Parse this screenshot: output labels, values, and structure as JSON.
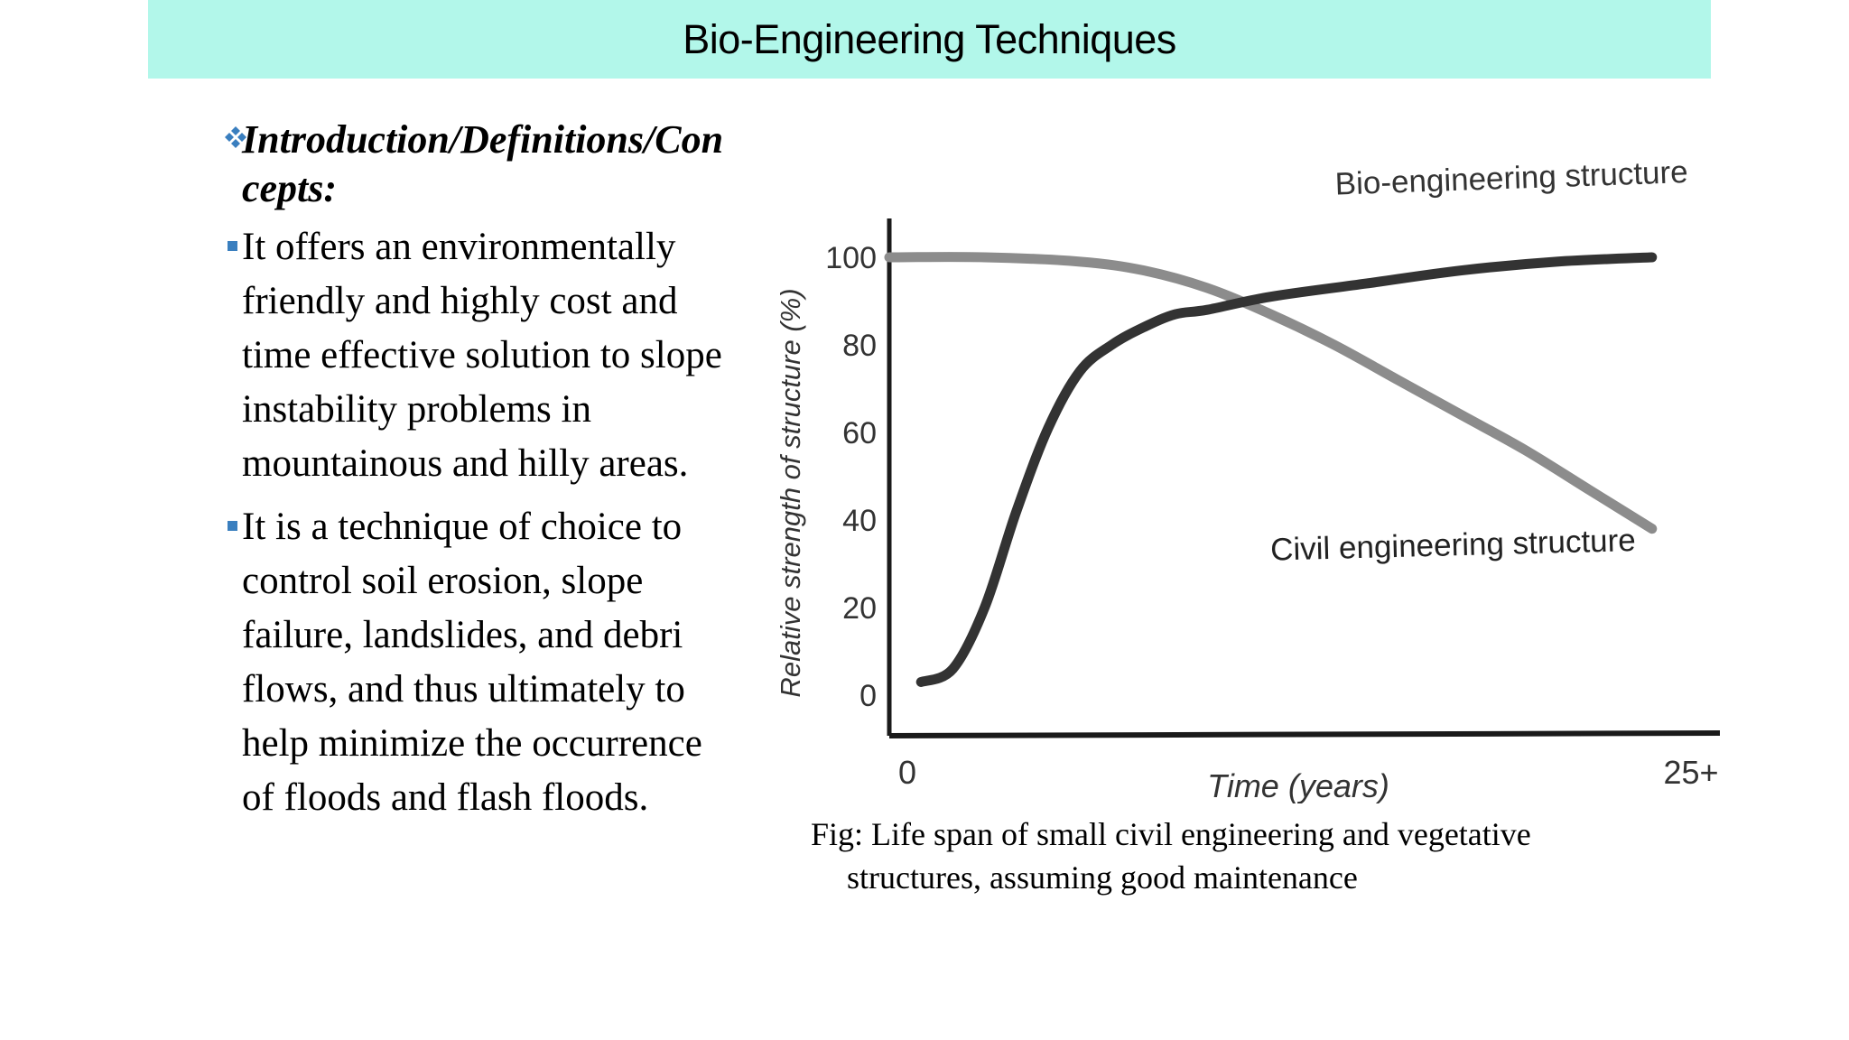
{
  "slide": {
    "title": "Bio-Engineering Techniques",
    "heading": "Introduction/Definitions/Concepts:",
    "bullets": [
      "It offers an environmentally friendly and highly cost and time effective solution to slope instability problems in mountainous and hilly areas.",
      "It is a technique of choice to control soil erosion, slope failure, landslides, and debri flows, and thus ultimately to help minimize the occurrence of floods and flash floods."
    ],
    "caption_line1": "Fig: Life span of small civil engineering and vegetative",
    "caption_line2": "structures, assuming good maintenance"
  },
  "colors": {
    "title_bar": "#b2f7ea",
    "bullet": "#3a7fbf",
    "bio_curve": "#333333",
    "civil_curve": "#8c8c8c",
    "axis": "#1a1a1a"
  },
  "chart_data": {
    "type": "line",
    "ylabel": "Relative strength of structure (%)",
    "xlabel": "Time (years)",
    "ylim": [
      0,
      100
    ],
    "yticks": [
      "0",
      "20",
      "40",
      "60",
      "80",
      "100"
    ],
    "xticks": [
      "0",
      "25+"
    ],
    "xlim": [
      0,
      25
    ],
    "grid": false,
    "series": [
      {
        "name": "Bio-engineering structure",
        "x": [
          1,
          2,
          3,
          4,
          5,
          6,
          7,
          8,
          9,
          10,
          12,
          15,
          18,
          21,
          24
        ],
        "y": [
          3,
          6,
          20,
          42,
          61,
          74,
          80,
          84,
          87,
          88,
          91,
          94,
          97,
          99,
          100
        ]
      },
      {
        "name": "Civil engineering structure",
        "x": [
          0,
          3,
          6,
          8,
          10,
          12,
          14,
          16,
          18,
          20,
          22,
          24
        ],
        "y": [
          100,
          100,
          99,
          97,
          93,
          87,
          80,
          72,
          64,
          56,
          47,
          38
        ]
      }
    ]
  }
}
